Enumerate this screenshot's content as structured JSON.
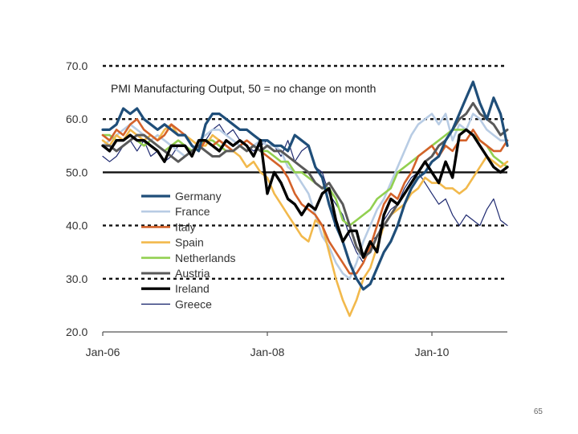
{
  "page_number": "65",
  "chart_data": {
    "type": "line",
    "title": "PMI Manufacturing Output, 50 = no change on month",
    "xlabel": "",
    "ylabel": "",
    "ylim": [
      20,
      70
    ],
    "yticks": [
      20,
      30,
      40,
      50,
      60,
      70
    ],
    "ytick_labels": [
      "20.0",
      "30.0",
      "40.0",
      "50.0",
      "60.0",
      "70.0"
    ],
    "xlim": [
      0,
      59
    ],
    "xticks": [
      0,
      24,
      48
    ],
    "xtick_labels": [
      "Jan-06",
      "Jan-08",
      "Jan-10"
    ],
    "reference_line": 50,
    "dotted_lines": [
      30,
      40,
      60,
      70
    ],
    "legend_position": "center-left",
    "series": [
      {
        "name": "Germany",
        "color": "#1f4e79",
        "width": 3.2,
        "values": [
          58,
          58,
          59,
          62,
          61,
          62,
          60,
          59,
          58,
          59,
          58,
          57,
          57,
          55,
          54,
          59,
          61,
          61,
          60,
          59,
          58,
          58,
          57,
          56,
          56,
          55,
          55,
          54,
          57,
          56,
          55,
          51,
          49,
          44,
          40,
          37,
          33,
          30,
          28,
          29,
          32,
          35,
          37,
          40,
          44,
          47,
          49,
          50,
          52,
          53,
          56,
          58,
          61,
          64,
          67,
          63,
          60,
          64,
          61,
          55
        ]
      },
      {
        "name": "France",
        "color": "#b8cce4",
        "width": 2.6,
        "values": [
          55,
          56,
          57,
          58,
          59,
          58,
          57,
          56,
          57,
          56,
          55,
          54,
          53,
          54,
          56,
          57,
          58,
          58,
          57,
          56,
          55,
          54,
          55,
          56,
          55,
          55,
          54,
          51,
          50,
          48,
          46,
          42,
          38,
          36,
          33,
          31,
          30,
          33,
          37,
          40,
          43,
          45,
          48,
          51,
          54,
          57,
          59,
          60,
          61,
          59,
          61,
          56,
          59,
          58,
          61,
          60,
          58,
          57,
          56,
          56
        ]
      },
      {
        "name": "Italy",
        "color": "#d4622a",
        "width": 2.6,
        "values": [
          57,
          56,
          58,
          57,
          59,
          60,
          58,
          57,
          56,
          57,
          59,
          58,
          57,
          55,
          54,
          56,
          55,
          56,
          55,
          54,
          55,
          56,
          55,
          54,
          53,
          52,
          51,
          49,
          46,
          44,
          43,
          42,
          40,
          37,
          35,
          33,
          31,
          31,
          33,
          36,
          40,
          44,
          46,
          45,
          48,
          50,
          53,
          54,
          55,
          53,
          55,
          54,
          56,
          56,
          58,
          56,
          55,
          54,
          54,
          56
        ]
      },
      {
        "name": "Spain",
        "color": "#f2b94c",
        "width": 2.6,
        "values": [
          56,
          55,
          57,
          56,
          58,
          57,
          56,
          57,
          56,
          58,
          59,
          57,
          57,
          56,
          55,
          55,
          57,
          56,
          55,
          54,
          53,
          51,
          52,
          50,
          49,
          46,
          44,
          42,
          40,
          38,
          37,
          41,
          40,
          35,
          30,
          26,
          23,
          26,
          30,
          32,
          36,
          40,
          42,
          43,
          44,
          46,
          47,
          49,
          48,
          48,
          47,
          47,
          46,
          47,
          49,
          51,
          53,
          52,
          51,
          52
        ]
      },
      {
        "name": "Netherlands",
        "color": "#92d050",
        "width": 2.6,
        "values": [
          57,
          57,
          56,
          56,
          57,
          56,
          55,
          56,
          55,
          54,
          55,
          56,
          55,
          54,
          55,
          56,
          56,
          55,
          54,
          54,
          55,
          54,
          55,
          54,
          54,
          53,
          52,
          52,
          50,
          50,
          49,
          48,
          47,
          47,
          45,
          41,
          40,
          41,
          42,
          43,
          45,
          46,
          47,
          50,
          51,
          52,
          53,
          54,
          55,
          56,
          57,
          58,
          58,
          58,
          57,
          56,
          55,
          53,
          52,
          51
        ]
      },
      {
        "name": "Austria",
        "color": "#595959",
        "width": 3.0,
        "values": [
          55,
          55,
          54,
          55,
          56,
          57,
          57,
          56,
          55,
          54,
          53,
          52,
          53,
          54,
          55,
          54,
          53,
          53,
          54,
          54,
          55,
          54,
          55,
          54,
          55,
          54,
          54,
          53,
          52,
          51,
          50,
          48,
          47,
          48,
          46,
          44,
          40,
          36,
          34,
          35,
          38,
          40,
          42,
          44,
          46,
          48,
          50,
          52,
          53,
          55,
          56,
          58,
          60,
          61,
          63,
          61,
          60,
          59,
          57,
          58
        ]
      },
      {
        "name": "Ireland",
        "color": "#000000",
        "width": 3.4,
        "values": [
          55,
          54,
          56,
          56,
          57,
          56,
          56,
          55,
          54,
          52,
          55,
          55,
          55,
          53,
          56,
          56,
          55,
          54,
          56,
          55,
          56,
          55,
          53,
          56,
          46,
          50,
          48,
          45,
          44,
          42,
          44,
          43,
          46,
          47,
          41,
          37,
          39,
          39,
          34,
          37,
          35,
          42,
          45,
          44,
          46,
          48,
          50,
          52,
          50,
          48,
          52,
          49,
          57,
          58,
          57,
          55,
          53,
          51,
          50,
          51
        ]
      },
      {
        "name": "Greece",
        "color": "#1f2a70",
        "width": 1.2,
        "values": [
          53,
          52,
          53,
          55,
          56,
          54,
          56,
          53,
          54,
          52,
          53,
          55,
          55,
          54,
          55,
          56,
          58,
          59,
          57,
          58,
          56,
          55,
          54,
          55,
          56,
          55,
          53,
          56,
          52,
          54,
          55,
          51,
          50,
          46,
          44,
          42,
          38,
          35,
          33,
          37,
          38,
          41,
          43,
          44,
          47,
          49,
          50,
          48,
          46,
          44,
          45,
          42,
          40,
          42,
          41,
          40,
          43,
          45,
          41,
          40
        ]
      }
    ]
  }
}
